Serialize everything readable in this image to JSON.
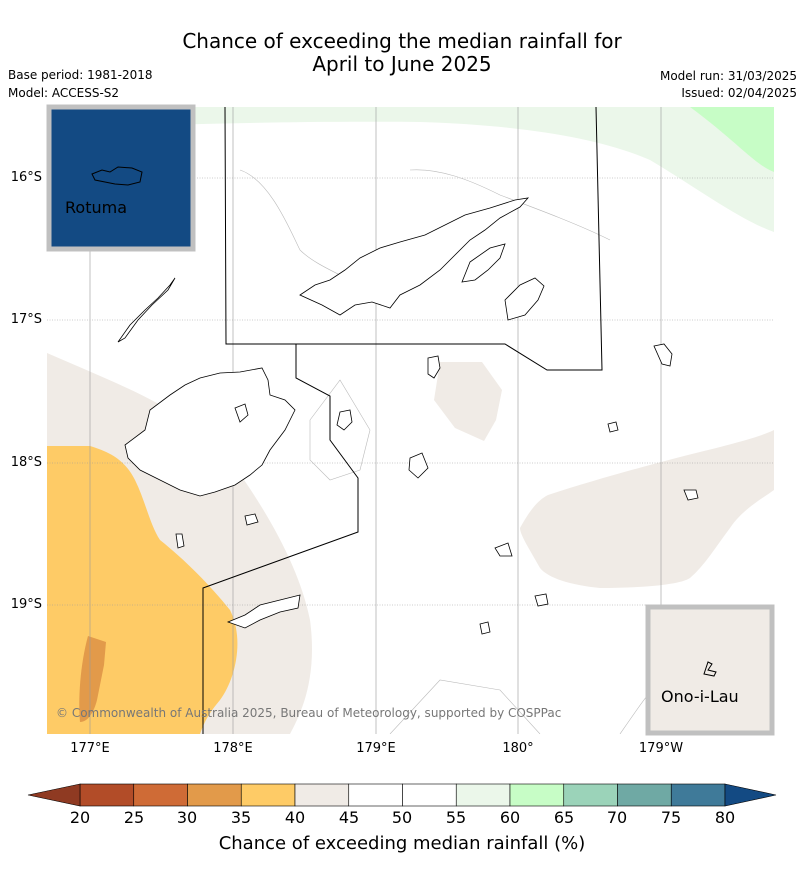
{
  "header": {
    "title_line1": "Chance of exceeding the median rainfall for",
    "title_line2": "April to June 2025",
    "base_period": "Base period: 1981-2018",
    "model": "Model: ACCESS-S2",
    "model_run": "Model run: 31/03/2025",
    "issued": "Issued: 02/04/2025"
  },
  "map": {
    "lon_labels": [
      "177°E",
      "178°E",
      "179°E",
      "180°",
      "179°W"
    ],
    "lat_labels": [
      "16°S",
      "17°S",
      "18°S",
      "19°S"
    ],
    "insets": {
      "rotuma": {
        "label": "Rotuma",
        "fill": "#134a83"
      },
      "ono_i_lau": {
        "label": "Ono-i-Lau",
        "fill": "#f0ebe6"
      }
    },
    "copyright": "© Commonwealth of Australia 2025, Bureau of Meteorology, supported by COSPPac"
  },
  "colorbar": {
    "ticks": [
      "20",
      "25",
      "30",
      "35",
      "40",
      "45",
      "50",
      "55",
      "60",
      "65",
      "70",
      "75",
      "80"
    ],
    "colors": [
      "#b24c28",
      "#cf6b36",
      "#e29a4a",
      "#fecb66",
      "#f0ebe6",
      "#ffffff",
      "#ffffff",
      "#ebf7ea",
      "#c7fdc6",
      "#9bd3b9",
      "#6fa9a4",
      "#3f7a99"
    ],
    "under_color": "#8f3a22",
    "over_color": "#134a83",
    "label": "Chance of exceeding median rainfall (%)"
  }
}
